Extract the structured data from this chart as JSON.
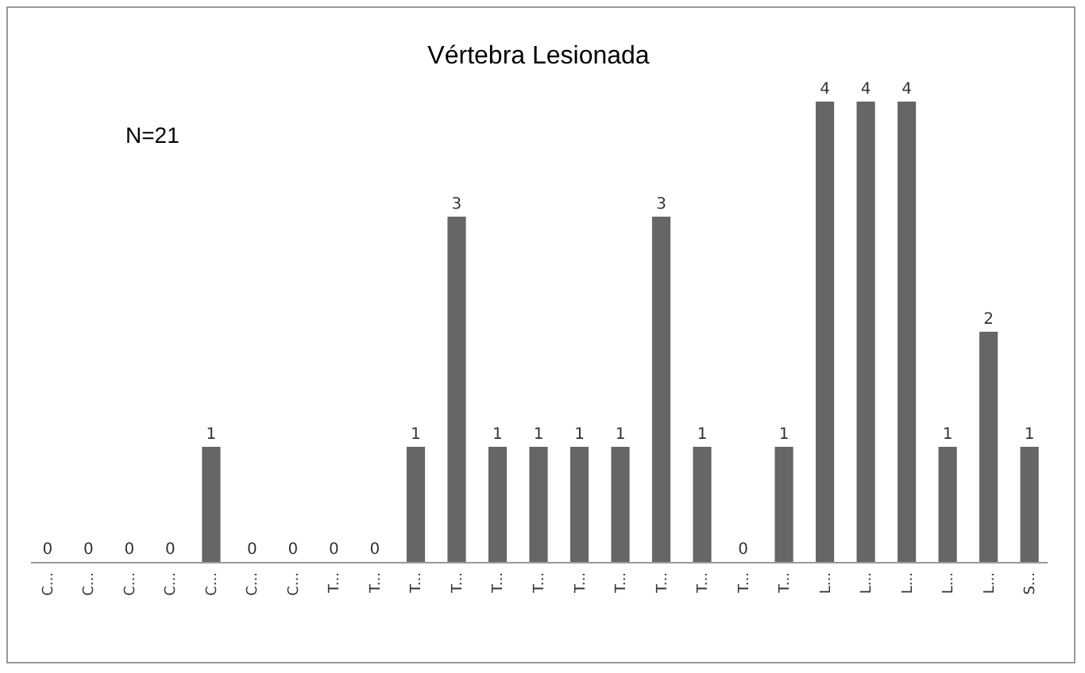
{
  "chart_data": {
    "type": "bar",
    "title": "Vértebra Lesionada",
    "annotations": [
      "N=21"
    ],
    "categories": [
      "C...",
      "C...",
      "C...",
      "C...",
      "C...",
      "C...",
      "C...",
      "T...",
      "T...",
      "T...",
      "T...",
      "T...",
      "T...",
      "T...",
      "T...",
      "T...",
      "T...",
      "T...",
      "T...",
      "L...",
      "L...",
      "L...",
      "L...",
      "L...",
      "S..."
    ],
    "values": [
      0,
      0,
      0,
      0,
      1,
      0,
      0,
      0,
      0,
      1,
      3,
      1,
      1,
      1,
      1,
      3,
      1,
      0,
      1,
      4,
      4,
      4,
      1,
      2,
      1
    ],
    "color": "#666666",
    "data_labels": true
  }
}
